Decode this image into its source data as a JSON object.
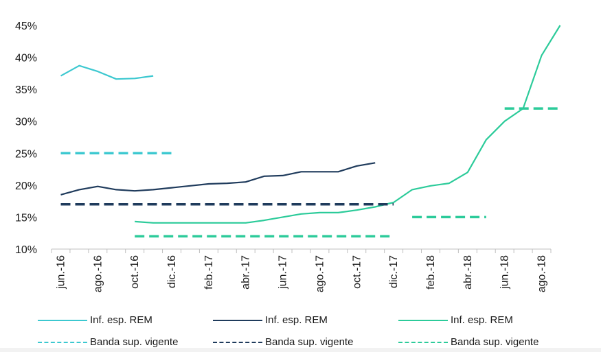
{
  "chart_data": {
    "type": "line",
    "title": "",
    "xlabel": "",
    "ylabel": "",
    "ylim": [
      10,
      45
    ],
    "y_ticks": [
      "10%",
      "15%",
      "20%",
      "25%",
      "30%",
      "35%",
      "40%",
      "45%"
    ],
    "y_tick_values": [
      10,
      15,
      20,
      25,
      30,
      35,
      40,
      45
    ],
    "x_ticks": [
      "jun.-16",
      "ago.-16",
      "oct.-16",
      "dic.-16",
      "feb.-17",
      "abr.-17",
      "jun.-17",
      "ago.-17",
      "oct.-17",
      "dic.-17",
      "feb.-18",
      "abr.-18",
      "jun.-18",
      "ago.-18"
    ],
    "x_tick_months": [
      0,
      2,
      4,
      6,
      8,
      10,
      12,
      14,
      16,
      18,
      20,
      22,
      24,
      26
    ],
    "x_range_months": [
      0,
      27
    ],
    "x_unit": "months since jun.-16",
    "series": [
      {
        "name": "Inf. esp. REM",
        "color": "#3cc8d0",
        "style": "solid",
        "points": [
          [
            0.5,
            37.1
          ],
          [
            1.5,
            38.7
          ],
          [
            2.5,
            37.8
          ],
          [
            3.5,
            36.6
          ],
          [
            4.5,
            36.7
          ],
          [
            5.5,
            37.1
          ]
        ]
      },
      {
        "name": "Inf. esp. REM",
        "color": "#1f3b5c",
        "style": "solid",
        "points": [
          [
            0.5,
            18.5
          ],
          [
            1.5,
            19.3
          ],
          [
            2.5,
            19.8
          ],
          [
            3.5,
            19.3
          ],
          [
            4.5,
            19.1
          ],
          [
            5.5,
            19.3
          ],
          [
            6.5,
            19.6
          ],
          [
            7.5,
            19.9
          ],
          [
            8.5,
            20.2
          ],
          [
            9.5,
            20.3
          ],
          [
            10.5,
            20.5
          ],
          [
            11.5,
            21.4
          ],
          [
            12.5,
            21.5
          ],
          [
            13.5,
            22.1
          ],
          [
            14.5,
            22.1
          ],
          [
            15.5,
            22.1
          ],
          [
            16.5,
            23.0
          ],
          [
            17.5,
            23.5
          ]
        ]
      },
      {
        "name": "Inf. esp. REM",
        "color": "#2ccb9a",
        "style": "solid",
        "points": [
          [
            4.5,
            14.3
          ],
          [
            5.5,
            14.1
          ],
          [
            6.5,
            14.1
          ],
          [
            7.5,
            14.1
          ],
          [
            8.5,
            14.1
          ],
          [
            9.5,
            14.1
          ],
          [
            10.5,
            14.1
          ],
          [
            11.5,
            14.5
          ],
          [
            12.5,
            15.0
          ],
          [
            13.5,
            15.5
          ],
          [
            14.5,
            15.7
          ],
          [
            15.5,
            15.7
          ],
          [
            16.5,
            16.1
          ],
          [
            17.5,
            16.6
          ],
          [
            18.5,
            17.3
          ],
          [
            19.5,
            19.3
          ],
          [
            20.5,
            19.9
          ],
          [
            21.5,
            20.3
          ],
          [
            22.5,
            22.0
          ],
          [
            23.5,
            27.1
          ],
          [
            24.5,
            30.0
          ],
          [
            25.5,
            32.0
          ],
          [
            26.5,
            40.3
          ],
          [
            27.5,
            45.0
          ]
        ]
      },
      {
        "name": "Banda sup. vigente",
        "color": "#3cc8d0",
        "style": "dashed",
        "points": [
          [
            0.5,
            25.0
          ],
          [
            6.5,
            25.0
          ]
        ]
      },
      {
        "name": "Banda sup. vigente",
        "color": "#1f3b5c",
        "style": "dashed",
        "points": [
          [
            0.5,
            17.0
          ],
          [
            18.5,
            17.0
          ]
        ]
      },
      {
        "name": "Banda sup. vigente",
        "color": "#2ccb9a",
        "style": "dashed",
        "points": [
          [
            4.5,
            12.0
          ],
          [
            18.5,
            12.0
          ]
        ]
      },
      {
        "name": "Banda sup. vigente",
        "color": "#2ccb9a",
        "style": "dashed",
        "points": [
          [
            19.5,
            15.0
          ],
          [
            23.5,
            15.0
          ]
        ]
      },
      {
        "name": "Banda sup. vigente",
        "color": "#2ccb9a",
        "style": "dashed",
        "points": [
          [
            24.5,
            32.0
          ],
          [
            27.5,
            32.0
          ]
        ]
      }
    ],
    "legend": [
      {
        "label": "Inf. esp. REM",
        "color": "#3cc8d0",
        "style": "solid"
      },
      {
        "label": "Inf. esp. REM",
        "color": "#1f3b5c",
        "style": "solid"
      },
      {
        "label": "Inf. esp. REM",
        "color": "#2ccb9a",
        "style": "solid"
      },
      {
        "label": "Banda sup. vigente",
        "color": "#3cc8d0",
        "style": "dashed"
      },
      {
        "label": "Banda sup. vigente",
        "color": "#1f3b5c",
        "style": "dashed"
      },
      {
        "label": "Banda sup. vigente",
        "color": "#2ccb9a",
        "style": "dashed"
      }
    ]
  }
}
